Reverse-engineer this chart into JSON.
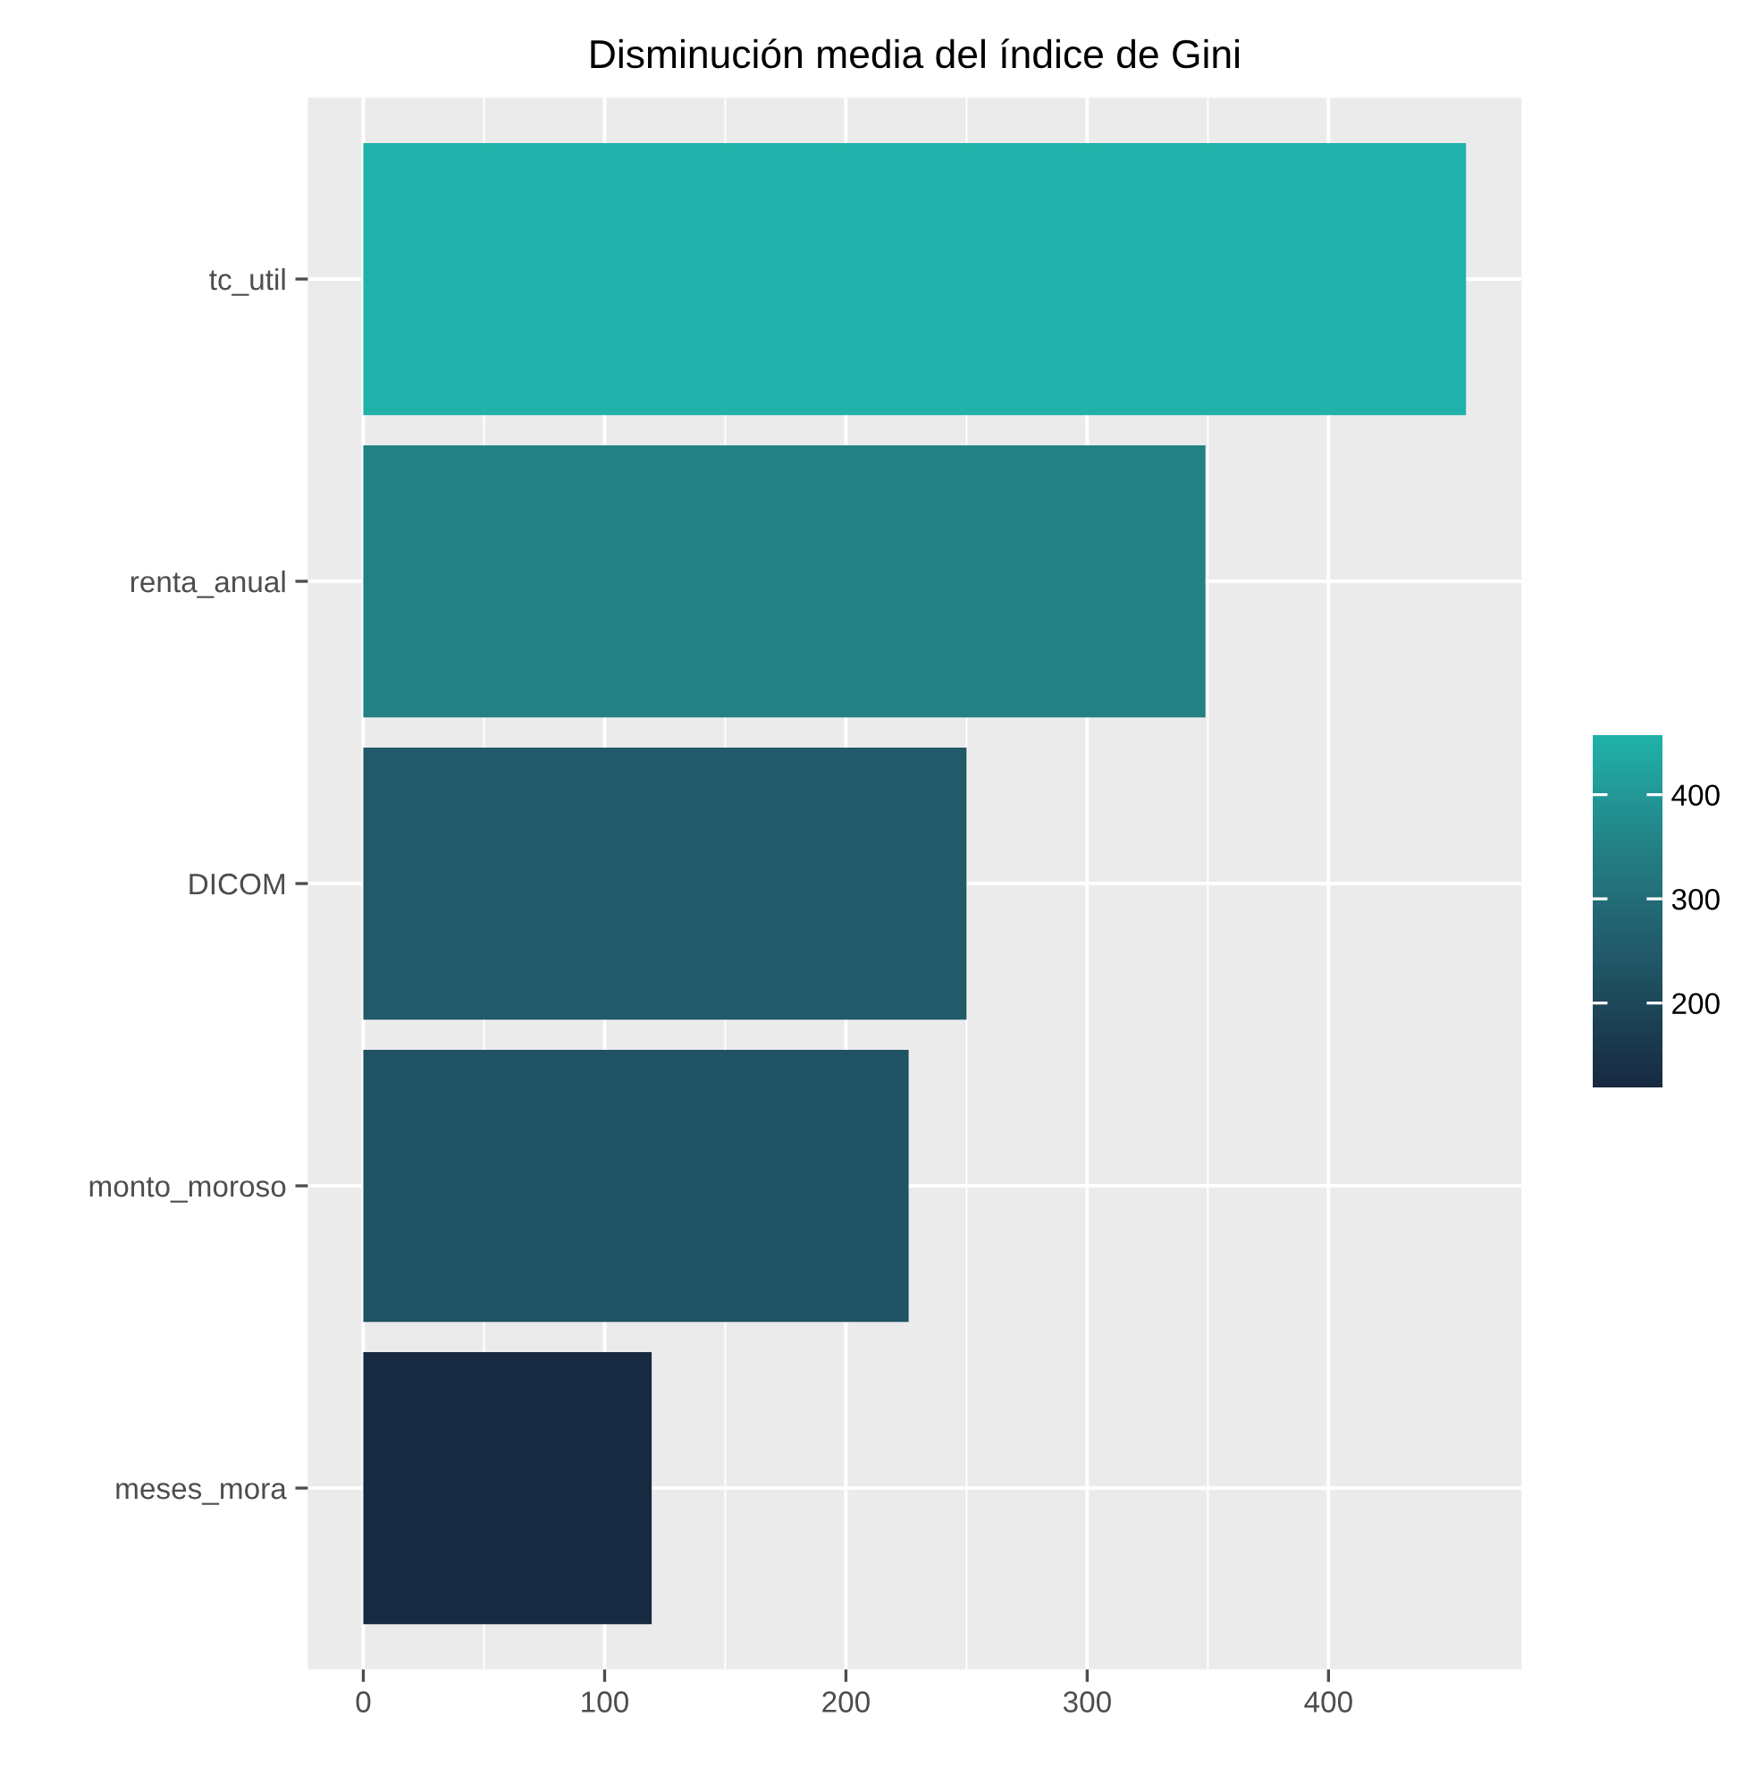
{
  "chart_data": {
    "type": "bar",
    "orientation": "horizontal",
    "title": "Disminución media del índice de Gini",
    "categories": [
      "tc_util",
      "renta_anual",
      "DICOM",
      "monto_moroso",
      "meses_mora"
    ],
    "values": [
      457,
      349,
      250,
      226,
      119.5
    ],
    "colors": [
      "#20b2aa",
      "#238085",
      "#225a69",
      "#1f5262",
      "#172a41"
    ],
    "xlim": [
      -23,
      480
    ],
    "xticks": [
      0,
      100,
      200,
      300,
      400
    ],
    "clim": [
      119.5,
      457
    ],
    "cticks": [
      200,
      300,
      400
    ],
    "grid": true
  }
}
